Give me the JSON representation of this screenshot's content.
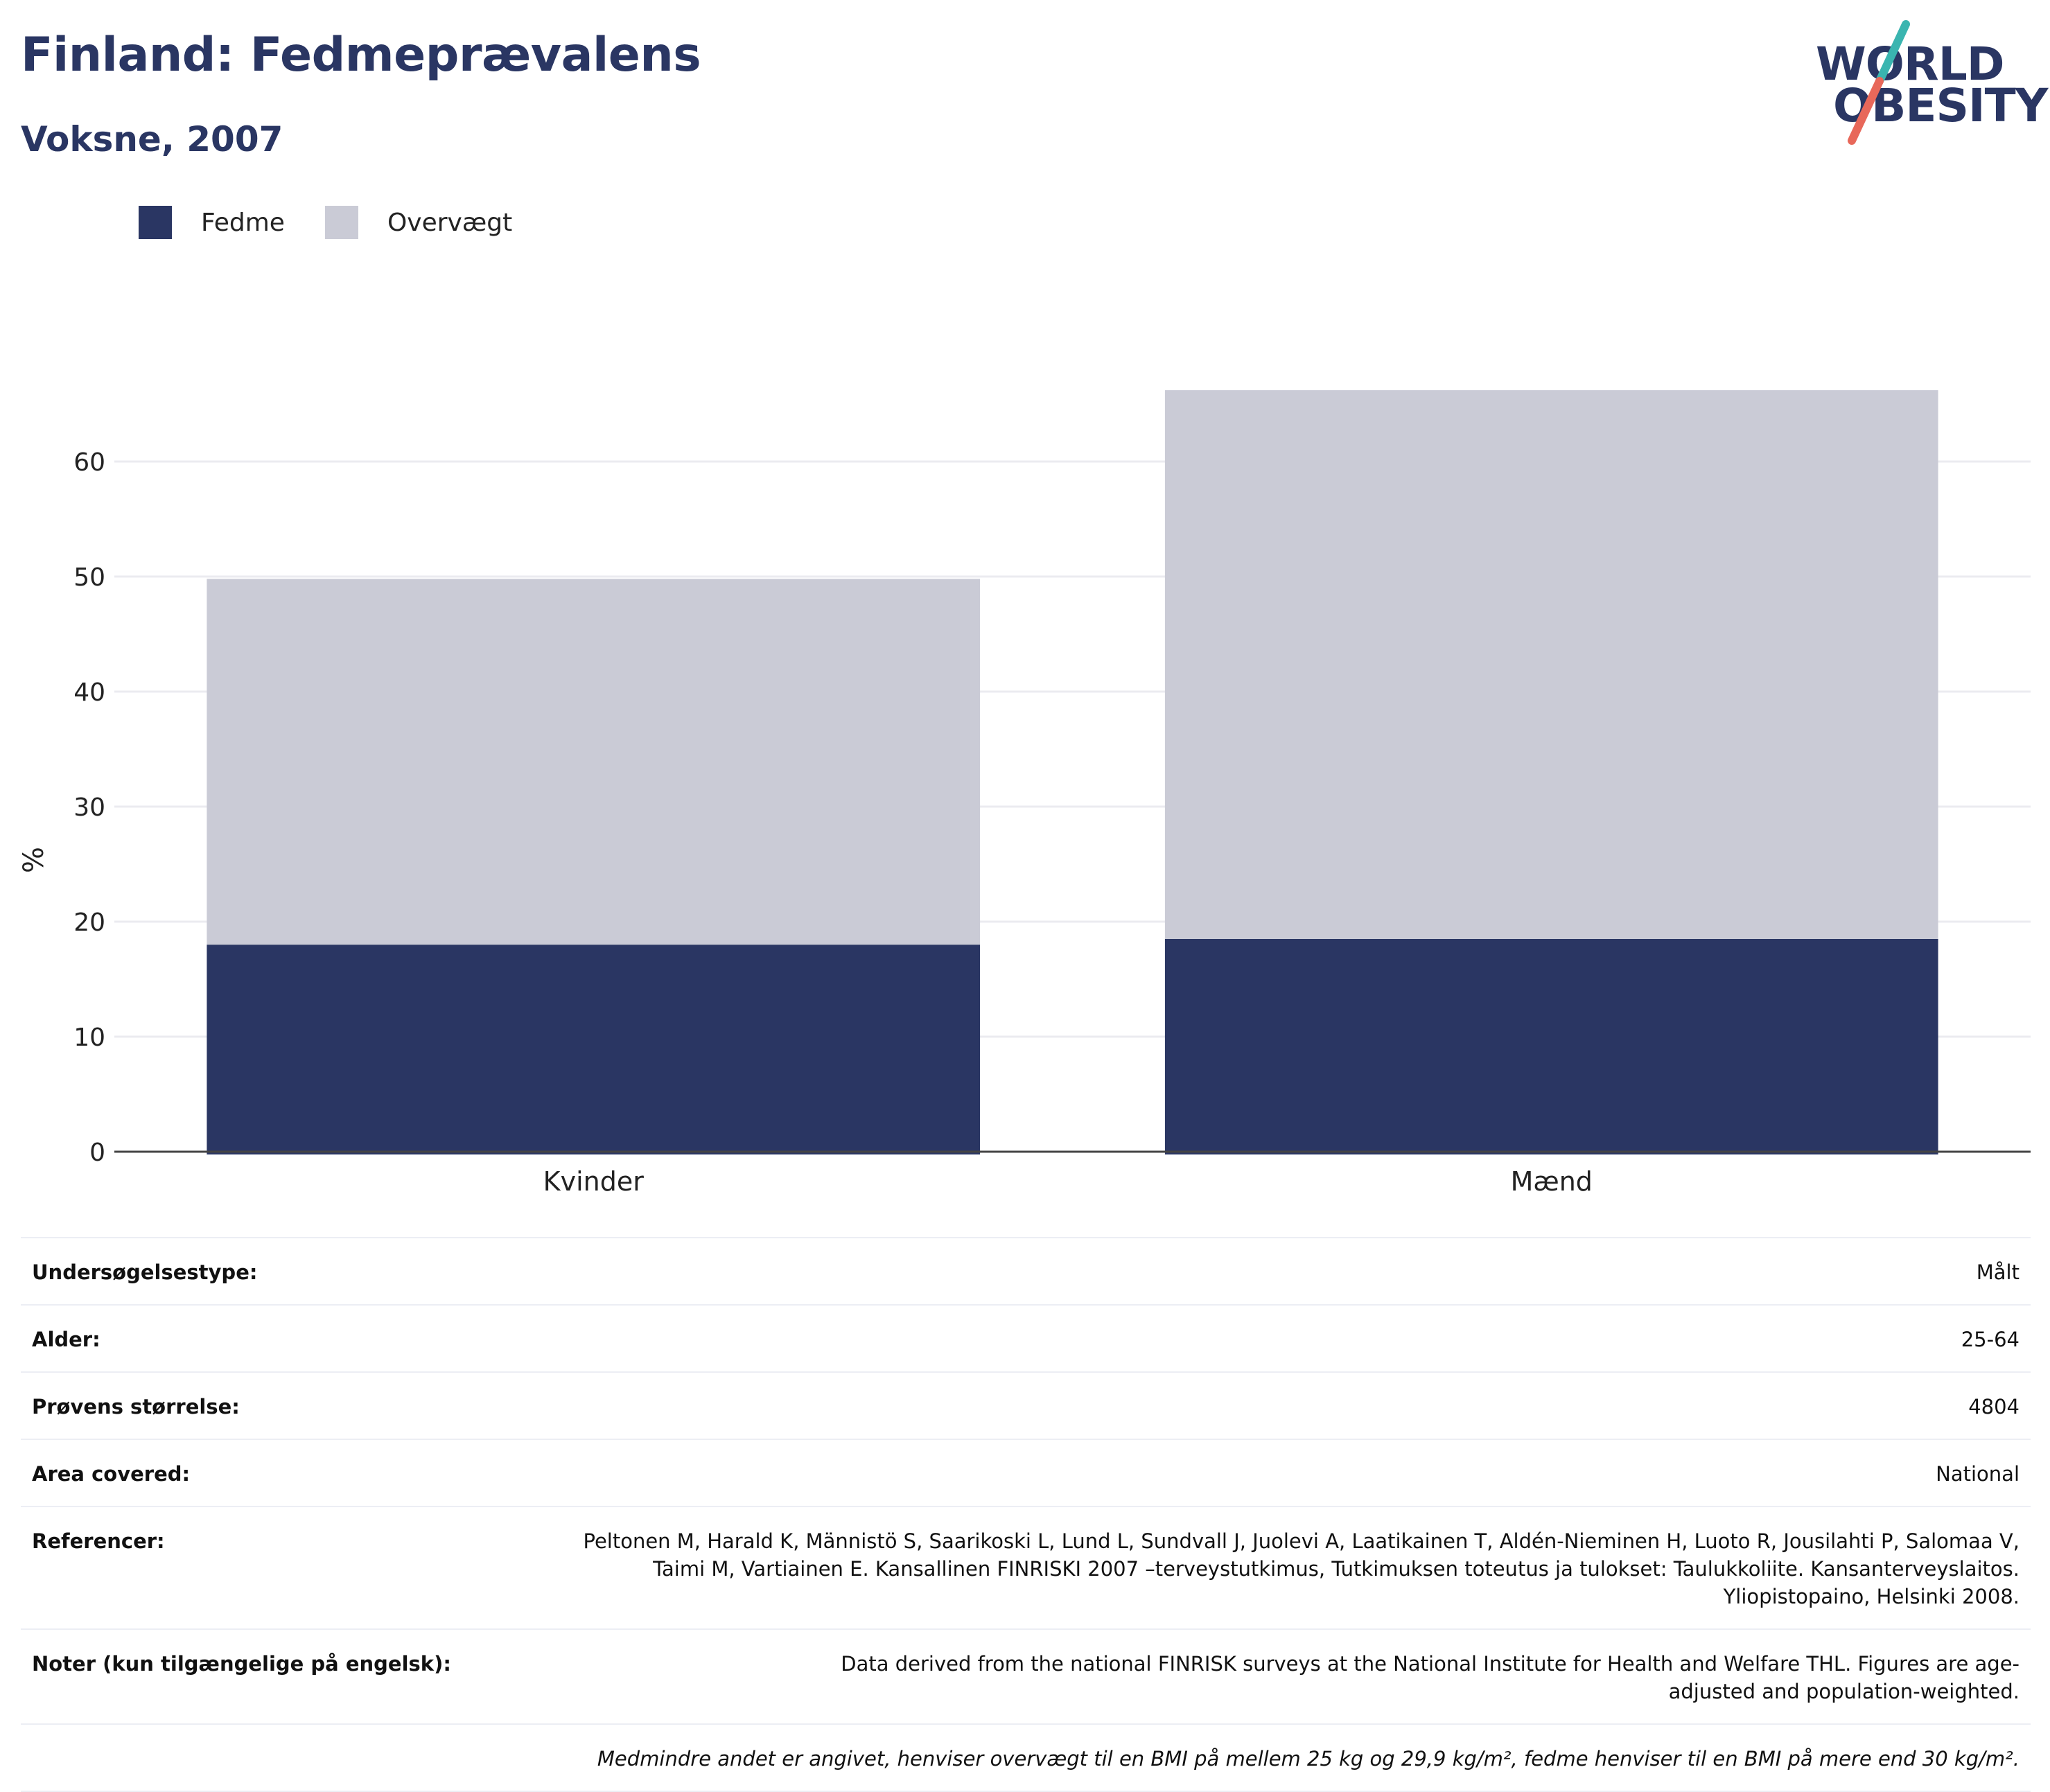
{
  "header": {
    "title": "Finland: Fedmeprævalens",
    "subtitle": "Voksne, 2007"
  },
  "logo": {
    "line1": "WORLD",
    "line2": "OBESITY",
    "colors": {
      "text": "#2a3663",
      "slash_top": "#3ab5b0",
      "slash_bottom": "#e8685a"
    }
  },
  "legend": [
    {
      "label": "Fedme",
      "color": "#2a3663"
    },
    {
      "label": "Overvægt",
      "color": "#cacbd6"
    }
  ],
  "chart_data": {
    "type": "bar",
    "stacked": true,
    "categories": [
      "Kvinder",
      "Mænd"
    ],
    "series": [
      {
        "name": "Fedme",
        "color": "#2a3663",
        "values": [
          18.0,
          18.5
        ]
      },
      {
        "name": "Overvægt",
        "color": "#cacbd6",
        "values": [
          31.8,
          47.7
        ]
      }
    ],
    "title": "Finland: Fedmeprævalens",
    "subtitle": "Voksne, 2007",
    "xlabel": "",
    "ylabel": "%",
    "ylim": [
      0,
      70
    ],
    "yticks": [
      0,
      10,
      20,
      30,
      40,
      50,
      60
    ],
    "grid": true,
    "legend_position": "top-left"
  },
  "info": {
    "rows": [
      {
        "key": "Undersøgelsestype:",
        "value": "Målt"
      },
      {
        "key": "Alder:",
        "value": "25-64"
      },
      {
        "key": "Prøvens størrelse:",
        "value": "4804"
      },
      {
        "key": "Area covered:",
        "value": "National"
      },
      {
        "key": "Referencer:",
        "value": "Peltonen M, Harald K, Männistö S, Saarikoski L, Lund L, Sundvall J, Juolevi A, Laatikainen T, Aldén-Nieminen H, Luoto R, Jousilahti P, Salomaa V, Taimi M, Vartiainen E. Kansallinen FINRISKI 2007 –terveystutkimus, Tutkimuksen toteutus ja tulokset: Taulukkoliite. Kansanterveyslaitos. Yliopistopaino, Helsinki 2008."
      },
      {
        "key": "Noter (kun tilgængelige på engelsk):",
        "value": "Data derived from the national FINRISK surveys at the National Institute for Health and Welfare THL. Figures are age-adjusted and population-weighted."
      }
    ],
    "footnote": "Medmindre andet er angivet, henviser overvægt til en BMI på mellem 25 kg og 29,9 kg/m², fedme henviser til en BMI på mere end 30 kg/m²."
  }
}
